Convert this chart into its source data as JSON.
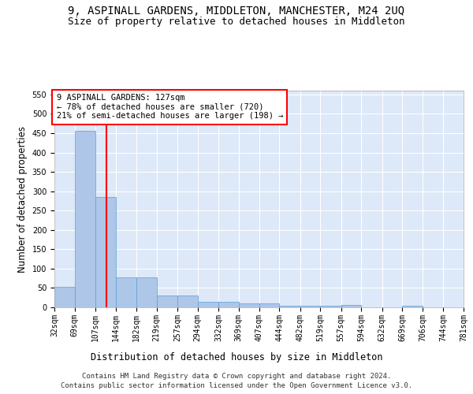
{
  "title": "9, ASPINALL GARDENS, MIDDLETON, MANCHESTER, M24 2UQ",
  "subtitle": "Size of property relative to detached houses in Middleton",
  "xlabel": "Distribution of detached houses by size in Middleton",
  "ylabel": "Number of detached properties",
  "footer_line1": "Contains HM Land Registry data © Crown copyright and database right 2024.",
  "footer_line2": "Contains public sector information licensed under the Open Government Licence v3.0.",
  "bin_edges": [
    32,
    69,
    107,
    144,
    182,
    219,
    257,
    294,
    332,
    369,
    407,
    444,
    482,
    519,
    557,
    594,
    632,
    669,
    706,
    744,
    781
  ],
  "bar_heights": [
    52,
    457,
    285,
    78,
    78,
    30,
    30,
    15,
    15,
    10,
    10,
    5,
    5,
    5,
    7,
    0,
    0,
    5,
    0,
    0
  ],
  "bar_color": "#aec6e8",
  "bar_edge_color": "#5a9fd4",
  "red_line_x": 127,
  "annotation_line1": "9 ASPINALL GARDENS: 127sqm",
  "annotation_line2": "← 78% of detached houses are smaller (720)",
  "annotation_line3": "21% of semi-detached houses are larger (198) →",
  "annotation_box_color": "white",
  "annotation_box_edge_color": "red",
  "red_line_color": "red",
  "ylim": [
    0,
    560
  ],
  "yticks": [
    0,
    50,
    100,
    150,
    200,
    250,
    300,
    350,
    400,
    450,
    500,
    550
  ],
  "background_color": "#dde8f8",
  "grid_color": "white",
  "title_fontsize": 10,
  "subtitle_fontsize": 9,
  "axis_label_fontsize": 8.5,
  "tick_fontsize": 7,
  "footer_fontsize": 6.5,
  "annotation_fontsize": 7.5
}
